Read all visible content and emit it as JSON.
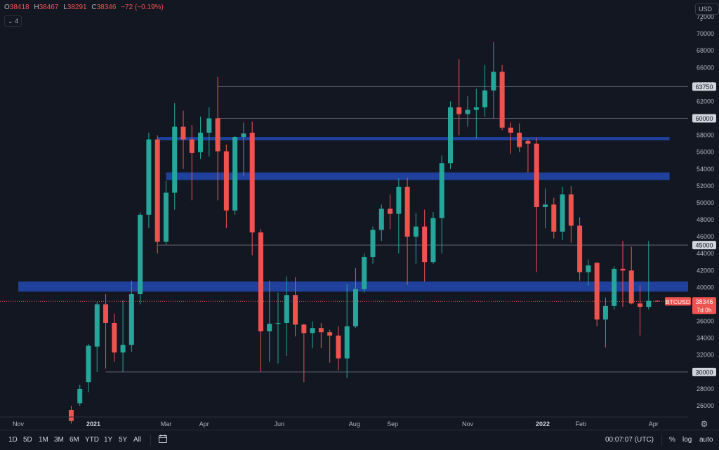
{
  "header": {
    "ohlc": [
      {
        "k": "O",
        "v": "38418"
      },
      {
        "k": "H",
        "v": "38467"
      },
      {
        "k": "L",
        "v": "38291"
      },
      {
        "k": "C",
        "v": "38346"
      },
      {
        "k": "",
        "v": "−72 (−0.19%)"
      }
    ],
    "indicator_toggle": "4",
    "currency": "USD"
  },
  "toolbar": {
    "ranges": [
      "1D",
      "5D",
      "1M",
      "3M",
      "6M",
      "YTD",
      "1Y",
      "5Y",
      "All"
    ],
    "compare_icon": "calendar-range-icon",
    "clock": "00:07:07 (UTC)",
    "percent_label": "%",
    "log_label": "log",
    "auto_label": "auto"
  },
  "colors": {
    "up": "#26a69a",
    "down": "#ef5350",
    "zone": "#2962ff",
    "background": "#131722"
  },
  "chart_data": {
    "type": "candlestick",
    "symbol": "BTCUSD",
    "interval": "1W",
    "ylim": [
      24500,
      72600
    ],
    "y_ticks": [
      26000,
      28000,
      30000,
      32000,
      34000,
      36000,
      38000,
      40000,
      42000,
      44000,
      46000,
      48000,
      50000,
      52000,
      54000,
      56000,
      58000,
      60000,
      62000,
      64000,
      66000,
      68000,
      70000,
      72000
    ],
    "x_labels": [
      {
        "label": "Nov",
        "date": "2020-11-01"
      },
      {
        "label": "2021",
        "date": "2021-01-01"
      },
      {
        "label": "Mar",
        "date": "2021-03-01"
      },
      {
        "label": "Apr",
        "date": "2021-04-01"
      },
      {
        "label": "Jun",
        "date": "2021-06-01"
      },
      {
        "label": "Aug",
        "date": "2021-08-01"
      },
      {
        "label": "Sep",
        "date": "2021-09-01"
      },
      {
        "label": "Nov",
        "date": "2021-11-01"
      },
      {
        "label": "2022",
        "date": "2022-01-01"
      },
      {
        "label": "Feb",
        "date": "2022-02-01"
      },
      {
        "label": "Apr",
        "date": "2022-04-01"
      }
    ],
    "candles": [
      {
        "d": "2020-12-14",
        "o": 25500,
        "h": 26000,
        "l": 23900,
        "c": 24200
      },
      {
        "d": "2020-12-21",
        "o": 26300,
        "h": 28500,
        "l": 26000,
        "c": 28000
      },
      {
        "d": "2020-12-28",
        "o": 28800,
        "h": 33300,
        "l": 27600,
        "c": 33100
      },
      {
        "d": "2021-01-04",
        "o": 33000,
        "h": 38300,
        "l": 30000,
        "c": 38000
      },
      {
        "d": "2021-01-11",
        "o": 38000,
        "h": 39200,
        "l": 30400,
        "c": 35800
      },
      {
        "d": "2021-01-18",
        "o": 35800,
        "h": 36900,
        "l": 31200,
        "c": 32300
      },
      {
        "d": "2021-01-25",
        "o": 32300,
        "h": 38500,
        "l": 30000,
        "c": 33200
      },
      {
        "d": "2021-02-01",
        "o": 33200,
        "h": 40800,
        "l": 32400,
        "c": 39200
      },
      {
        "d": "2021-02-08",
        "o": 39200,
        "h": 48900,
        "l": 38000,
        "c": 48600
      },
      {
        "d": "2021-02-15",
        "o": 48600,
        "h": 58300,
        "l": 47000,
        "c": 57500
      },
      {
        "d": "2021-02-22",
        "o": 57500,
        "h": 58000,
        "l": 44000,
        "c": 45400
      },
      {
        "d": "2021-03-01",
        "o": 45400,
        "h": 52600,
        "l": 45000,
        "c": 51200
      },
      {
        "d": "2021-03-08",
        "o": 51200,
        "h": 61800,
        "l": 49200,
        "c": 59000
      },
      {
        "d": "2021-03-15",
        "o": 59000,
        "h": 60900,
        "l": 54000,
        "c": 57500
      },
      {
        "d": "2021-03-22",
        "o": 57500,
        "h": 59200,
        "l": 50300,
        "c": 55900
      },
      {
        "d": "2021-03-29",
        "o": 56000,
        "h": 60200,
        "l": 55200,
        "c": 58300
      },
      {
        "d": "2021-04-05",
        "o": 58300,
        "h": 61300,
        "l": 55500,
        "c": 60000
      },
      {
        "d": "2021-04-12",
        "o": 60000,
        "h": 64900,
        "l": 50300,
        "c": 56100
      },
      {
        "d": "2021-04-19",
        "o": 56100,
        "h": 56900,
        "l": 47000,
        "c": 49100
      },
      {
        "d": "2021-04-26",
        "o": 49100,
        "h": 57900,
        "l": 48600,
        "c": 57800
      },
      {
        "d": "2021-05-03",
        "o": 57800,
        "h": 59500,
        "l": 53200,
        "c": 58200
      },
      {
        "d": "2021-05-10",
        "o": 58300,
        "h": 59600,
        "l": 43800,
        "c": 46500
      },
      {
        "d": "2021-05-17",
        "o": 46500,
        "h": 46900,
        "l": 30000,
        "c": 34800
      },
      {
        "d": "2021-05-24",
        "o": 34800,
        "h": 40800,
        "l": 31200,
        "c": 35700
      },
      {
        "d": "2021-05-31",
        "o": 35700,
        "h": 39400,
        "l": 31000,
        "c": 35800
      },
      {
        "d": "2021-06-07",
        "o": 35800,
        "h": 41300,
        "l": 31900,
        "c": 39100
      },
      {
        "d": "2021-06-14",
        "o": 39100,
        "h": 41200,
        "l": 34200,
        "c": 35600
      },
      {
        "d": "2021-06-21",
        "o": 35600,
        "h": 35700,
        "l": 28800,
        "c": 34600
      },
      {
        "d": "2021-06-28",
        "o": 34600,
        "h": 36000,
        "l": 32800,
        "c": 35200
      },
      {
        "d": "2021-07-05",
        "o": 35200,
        "h": 35800,
        "l": 32800,
        "c": 34700
      },
      {
        "d": "2021-07-12",
        "o": 34700,
        "h": 35000,
        "l": 31100,
        "c": 34300
      },
      {
        "d": "2021-07-19",
        "o": 34300,
        "h": 35400,
        "l": 30200,
        "c": 31600
      },
      {
        "d": "2021-07-26",
        "o": 31600,
        "h": 40400,
        "l": 29300,
        "c": 35400
      },
      {
        "d": "2021-08-02",
        "o": 35400,
        "h": 42300,
        "l": 35200,
        "c": 39800
      },
      {
        "d": "2021-08-09",
        "o": 39800,
        "h": 44000,
        "l": 39400,
        "c": 43600
      },
      {
        "d": "2021-08-16",
        "o": 43600,
        "h": 47200,
        "l": 42800,
        "c": 46800
      },
      {
        "d": "2021-08-23",
        "o": 46800,
        "h": 49800,
        "l": 45500,
        "c": 49300
      },
      {
        "d": "2021-08-30",
        "o": 49300,
        "h": 51000,
        "l": 46900,
        "c": 48700
      },
      {
        "d": "2021-09-06",
        "o": 48700,
        "h": 52900,
        "l": 44000,
        "c": 51900
      },
      {
        "d": "2021-09-13",
        "o": 51900,
        "h": 53000,
        "l": 40300,
        "c": 46000
      },
      {
        "d": "2021-09-20",
        "o": 46000,
        "h": 48800,
        "l": 42800,
        "c": 47200
      },
      {
        "d": "2021-09-27",
        "o": 47200,
        "h": 49200,
        "l": 40700,
        "c": 43000
      },
      {
        "d": "2021-10-04",
        "o": 43000,
        "h": 48900,
        "l": 42800,
        "c": 48200
      },
      {
        "d": "2021-10-11",
        "o": 48200,
        "h": 55600,
        "l": 44000,
        "c": 54700
      },
      {
        "d": "2021-10-18",
        "o": 54700,
        "h": 62000,
        "l": 54000,
        "c": 61300
      },
      {
        "d": "2021-10-25",
        "o": 61300,
        "h": 67000,
        "l": 58000,
        "c": 60500
      },
      {
        "d": "2021-11-01",
        "o": 60500,
        "h": 62600,
        "l": 59000,
        "c": 61000
      },
      {
        "d": "2021-11-08",
        "o": 61000,
        "h": 63500,
        "l": 57600,
        "c": 61300
      },
      {
        "d": "2021-11-15",
        "o": 61300,
        "h": 66300,
        "l": 60200,
        "c": 63300
      },
      {
        "d": "2021-11-22",
        "o": 63300,
        "h": 69000,
        "l": 60000,
        "c": 65500
      },
      {
        "d": "2021-11-29",
        "o": 65500,
        "h": 66300,
        "l": 58600,
        "c": 58900
      },
      {
        "d": "2021-12-06",
        "o": 58900,
        "h": 59500,
        "l": 55800,
        "c": 58300
      },
      {
        "d": "2021-12-13",
        "o": 58300,
        "h": 59400,
        "l": 56000,
        "c": 56600
      },
      {
        "d": "2021-12-20",
        "o": 57300,
        "h": 57600,
        "l": 53600,
        "c": 57000
      },
      {
        "d": "2021-12-27",
        "o": 57000,
        "h": 57700,
        "l": 41800,
        "c": 49500
      },
      {
        "d": "2022-01-03",
        "o": 49500,
        "h": 51700,
        "l": 47000,
        "c": 49800
      },
      {
        "d": "2022-01-10",
        "o": 49800,
        "h": 50600,
        "l": 45800,
        "c": 46600
      },
      {
        "d": "2022-01-17",
        "o": 46600,
        "h": 51900,
        "l": 45600,
        "c": 51000
      },
      {
        "d": "2022-01-24",
        "o": 51000,
        "h": 52000,
        "l": 45300,
        "c": 47300
      },
      {
        "d": "2022-01-31",
        "o": 47300,
        "h": 48300,
        "l": 40800,
        "c": 41800
      },
      {
        "d": "2022-02-07",
        "o": 41800,
        "h": 43300,
        "l": 40200,
        "c": 42600
      },
      {
        "d": "2022-02-14",
        "o": 42900,
        "h": 43000,
        "l": 35400,
        "c": 36200
      },
      {
        "d": "2022-02-21",
        "o": 36200,
        "h": 38800,
        "l": 32900,
        "c": 37800
      },
      {
        "d": "2022-02-28",
        "o": 37800,
        "h": 42500,
        "l": 37400,
        "c": 42200
      },
      {
        "d": "2022-03-07",
        "o": 42200,
        "h": 45500,
        "l": 37700,
        "c": 42000
      },
      {
        "d": "2022-03-14",
        "o": 42000,
        "h": 44800,
        "l": 38000,
        "c": 38100
      },
      {
        "d": "2022-03-21",
        "o": 38100,
        "h": 40300,
        "l": 34300,
        "c": 37700
      },
      {
        "d": "2022-03-28",
        "o": 37700,
        "h": 45500,
        "l": 37400,
        "c": 38418
      },
      {
        "d": "2022-04-04",
        "o": 38418,
        "h": 38467,
        "l": 38291,
        "c": 38346
      }
    ],
    "horizontal_lines": [
      {
        "value": 63750,
        "label": "63750",
        "from": "2021-04-12"
      },
      {
        "value": 60000,
        "label": "60000",
        "from": "2021-04-12"
      },
      {
        "value": 45000,
        "label": "45000",
        "from": "2021-02-22"
      },
      {
        "value": 30000,
        "label": "30000",
        "from": "2021-01-11"
      }
    ],
    "zones": [
      {
        "from": "2021-02-22",
        "to": "2022-04-14",
        "y0": 57400,
        "y1": 57800
      },
      {
        "from": "2021-03-01",
        "to": "2022-04-14",
        "y0": 52700,
        "y1": 53600
      },
      {
        "from": "2020-11-01",
        "to": "2022-05-01",
        "y0": 39500,
        "y1": 40700
      }
    ],
    "price_label": {
      "symbol": "BTCUSD",
      "value": "38346",
      "countdown": "7d 0h"
    }
  }
}
